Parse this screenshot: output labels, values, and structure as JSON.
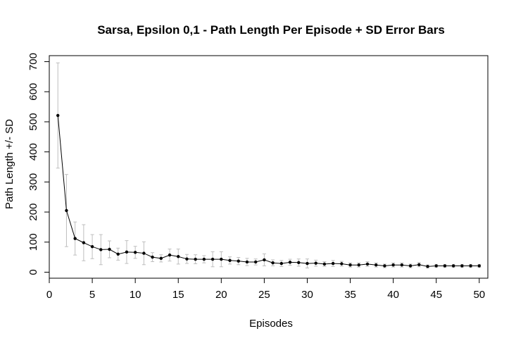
{
  "chart_data": {
    "type": "line",
    "title": "Sarsa, Epsilon 0,1 - Path Length Per Episode + SD Error Bars",
    "xlabel": "Episodes",
    "ylabel": "Path Length +/- SD",
    "xlim": [
      0,
      51
    ],
    "ylim": [
      -20,
      720
    ],
    "x_ticks": [
      0,
      5,
      10,
      15,
      20,
      25,
      30,
      35,
      40,
      45,
      50
    ],
    "y_ticks": [
      0,
      100,
      200,
      300,
      400,
      500,
      600,
      700
    ],
    "grid": false,
    "error_bar_color": "#bebebe",
    "line_color": "#000000",
    "series": [
      {
        "x": [
          1,
          2,
          3,
          4,
          5,
          6,
          7,
          8,
          9,
          10,
          11,
          12,
          13,
          14,
          15,
          16,
          17,
          18,
          19,
          20,
          21,
          22,
          23,
          24,
          25,
          26,
          27,
          28,
          29,
          30,
          31,
          32,
          33,
          34,
          35,
          36,
          37,
          38,
          39,
          40,
          41,
          42,
          43,
          44,
          45,
          46,
          47,
          48,
          49,
          50
        ],
        "values": [
          521,
          205,
          112,
          98,
          85,
          75,
          76,
          60,
          67,
          66,
          63,
          50,
          46,
          57,
          52,
          44,
          43,
          43,
          43,
          43,
          39,
          37,
          34,
          34,
          41,
          31,
          29,
          33,
          32,
          29,
          30,
          27,
          29,
          28,
          24,
          24,
          27,
          24,
          21,
          24,
          24,
          21,
          25,
          19,
          21,
          21,
          21,
          21,
          21,
          21
        ],
        "sd": [
          175,
          120,
          55,
          60,
          40,
          50,
          28,
          20,
          38,
          20,
          38,
          15,
          12,
          20,
          25,
          15,
          15,
          12,
          25,
          25,
          12,
          12,
          12,
          10,
          20,
          10,
          10,
          10,
          12,
          15,
          10,
          8,
          10,
          8,
          7,
          7,
          8,
          7,
          6,
          7,
          7,
          6,
          7,
          5,
          5,
          5,
          5,
          5,
          5,
          5
        ]
      }
    ]
  }
}
